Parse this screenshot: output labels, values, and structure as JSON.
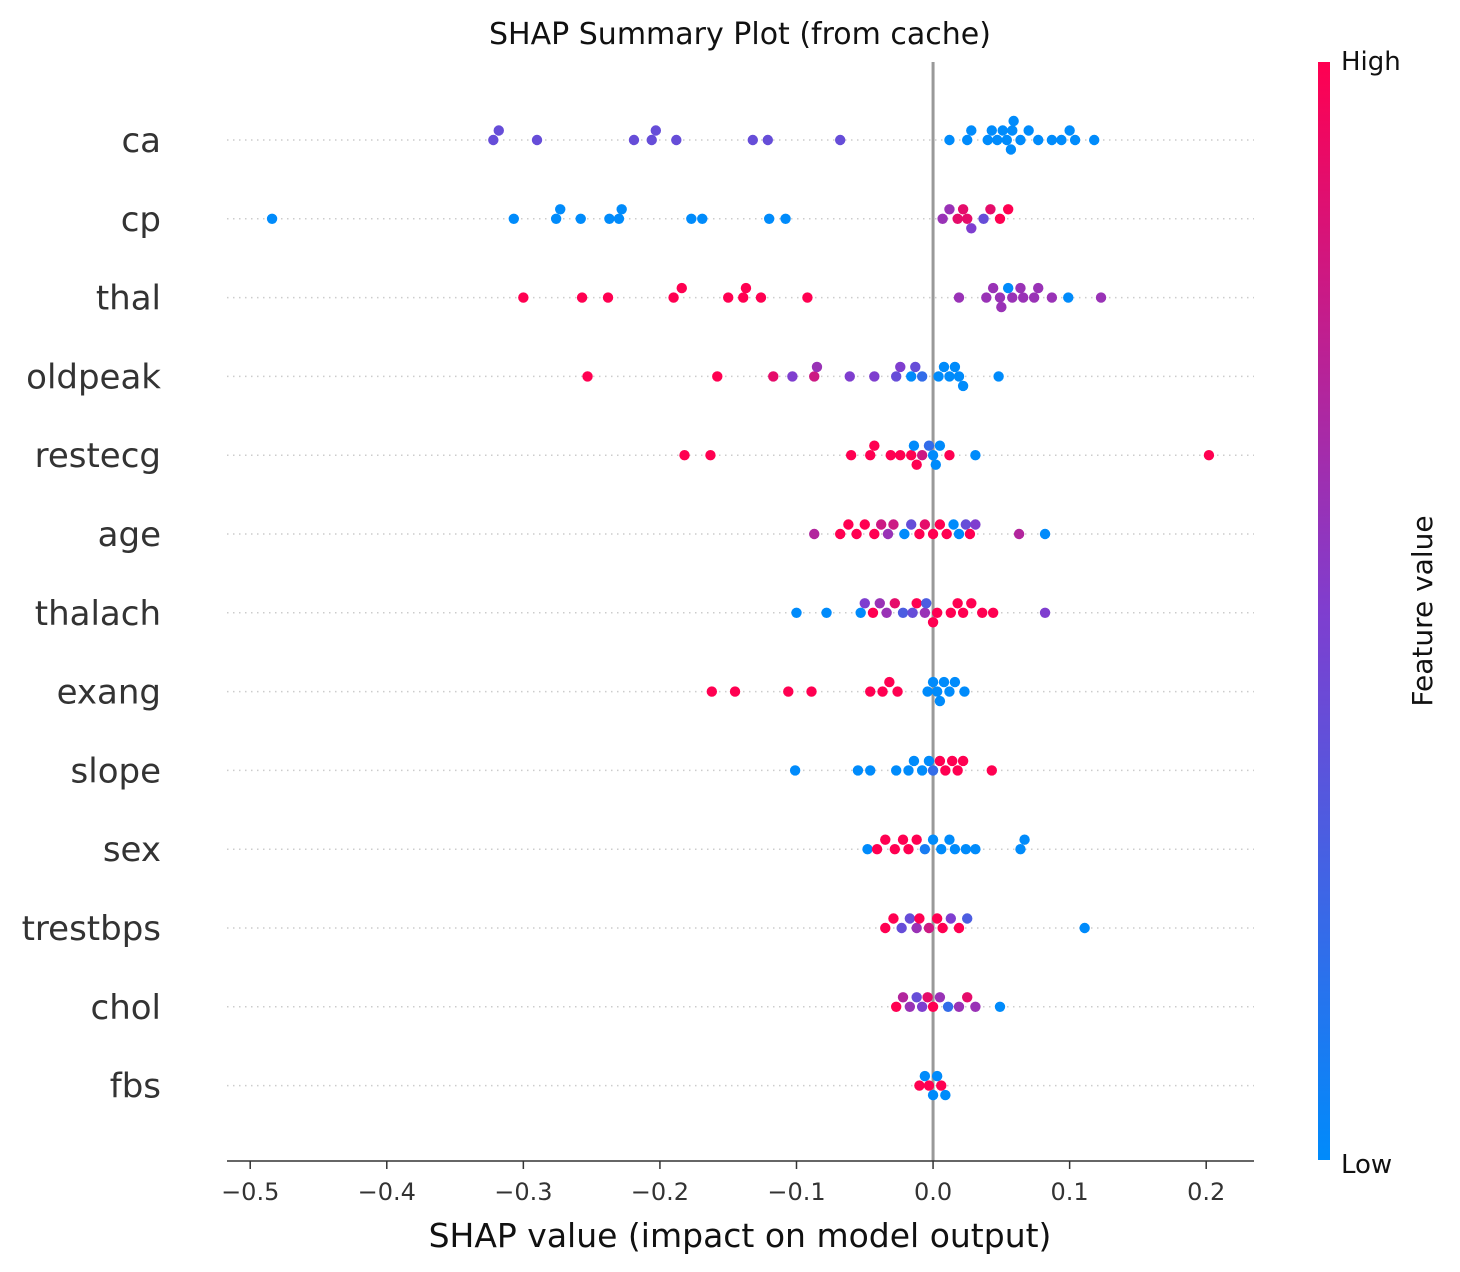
{
  "chart_data": {
    "type": "scatter",
    "title": "SHAP Summary Plot (from cache)",
    "xlabel": "SHAP value (impact on model output)",
    "xlim": [
      -0.517,
      0.235
    ],
    "xticks": [
      -0.5,
      -0.4,
      -0.3,
      -0.2,
      -0.1,
      0.0,
      0.1,
      0.2
    ],
    "xtick_labels": [
      "−0.5",
      "−0.4",
      "−0.3",
      "−0.2",
      "−0.1",
      "0.0",
      "0.1",
      "0.2"
    ],
    "features": [
      "ca",
      "cp",
      "thal",
      "oldpeak",
      "restecg",
      "age",
      "thalach",
      "exang",
      "slope",
      "sex",
      "trestbps",
      "chol",
      "fbs"
    ],
    "zero_line": true,
    "grid": false,
    "colorbar": {
      "label": "Feature value",
      "high_label": "High",
      "low_label": "Low",
      "high_color": "#ff0051",
      "mid_color": "#7f3ecf",
      "low_color": "#008bfb"
    },
    "series": [
      {
        "feature": "ca",
        "points": [
          [
            -0.322,
            0.4
          ],
          [
            -0.318,
            0.4
          ],
          [
            -0.29,
            0.4
          ],
          [
            -0.219,
            0.4
          ],
          [
            -0.206,
            0.4
          ],
          [
            -0.203,
            0.4
          ],
          [
            -0.188,
            0.4
          ],
          [
            -0.132,
            0.4
          ],
          [
            -0.121,
            0.4
          ],
          [
            -0.068,
            0.4
          ],
          [
            0.012,
            0.0
          ],
          [
            0.025,
            0.0
          ],
          [
            0.028,
            0.0
          ],
          [
            0.04,
            0.0
          ],
          [
            0.043,
            0.0
          ],
          [
            0.047,
            0.0
          ],
          [
            0.051,
            0.0
          ],
          [
            0.054,
            0.0
          ],
          [
            0.057,
            0.0
          ],
          [
            0.058,
            0.0
          ],
          [
            0.059,
            0.0
          ],
          [
            0.064,
            0.0
          ],
          [
            0.07,
            0.0
          ],
          [
            0.077,
            0.0
          ],
          [
            0.087,
            0.0
          ],
          [
            0.094,
            0.0
          ],
          [
            0.1,
            0.0
          ],
          [
            0.104,
            0.0
          ],
          [
            0.118,
            0.0
          ]
        ]
      },
      {
        "feature": "cp",
        "points": [
          [
            -0.484,
            0.0
          ],
          [
            -0.307,
            0.0
          ],
          [
            -0.276,
            0.0
          ],
          [
            -0.273,
            0.0
          ],
          [
            -0.258,
            0.0
          ],
          [
            -0.237,
            0.0
          ],
          [
            -0.23,
            0.0
          ],
          [
            -0.228,
            0.0
          ],
          [
            -0.177,
            0.0
          ],
          [
            -0.169,
            0.0
          ],
          [
            -0.12,
            0.0
          ],
          [
            -0.108,
            0.0
          ],
          [
            0.007,
            0.6
          ],
          [
            0.012,
            0.6
          ],
          [
            0.018,
            0.9
          ],
          [
            0.022,
            0.9
          ],
          [
            0.025,
            0.9
          ],
          [
            0.028,
            0.5
          ],
          [
            0.037,
            0.4
          ],
          [
            0.042,
            0.9
          ],
          [
            0.049,
            1.0
          ],
          [
            0.055,
            1.0
          ]
        ]
      },
      {
        "feature": "thal",
        "points": [
          [
            -0.3,
            1.0
          ],
          [
            -0.257,
            1.0
          ],
          [
            -0.238,
            1.0
          ],
          [
            -0.19,
            1.0
          ],
          [
            -0.184,
            1.0
          ],
          [
            -0.15,
            1.0
          ],
          [
            -0.139,
            1.0
          ],
          [
            -0.137,
            1.0
          ],
          [
            -0.126,
            1.0
          ],
          [
            -0.092,
            1.0
          ],
          [
            0.019,
            0.6
          ],
          [
            0.039,
            0.6
          ],
          [
            0.044,
            0.6
          ],
          [
            0.049,
            0.6
          ],
          [
            0.05,
            0.6
          ],
          [
            0.055,
            0.0
          ],
          [
            0.058,
            0.6
          ],
          [
            0.064,
            0.6
          ],
          [
            0.066,
            0.6
          ],
          [
            0.074,
            0.6
          ],
          [
            0.077,
            0.6
          ],
          [
            0.087,
            0.6
          ],
          [
            0.099,
            0.0
          ],
          [
            0.123,
            0.6
          ]
        ]
      },
      {
        "feature": "oldpeak",
        "points": [
          [
            -0.253,
            1.0
          ],
          [
            -0.158,
            1.0
          ],
          [
            -0.117,
            0.9
          ],
          [
            -0.103,
            0.5
          ],
          [
            -0.087,
            0.8
          ],
          [
            -0.085,
            0.6
          ],
          [
            -0.061,
            0.5
          ],
          [
            -0.043,
            0.5
          ],
          [
            -0.027,
            0.4
          ],
          [
            -0.024,
            0.5
          ],
          [
            -0.016,
            0.0
          ],
          [
            -0.013,
            0.4
          ],
          [
            -0.008,
            0.2
          ],
          [
            0.004,
            0.0
          ],
          [
            0.008,
            0.0
          ],
          [
            0.012,
            0.0
          ],
          [
            0.016,
            0.0
          ],
          [
            0.019,
            0.0
          ],
          [
            0.022,
            0.0
          ],
          [
            0.048,
            0.0
          ]
        ]
      },
      {
        "feature": "restecg",
        "points": [
          [
            -0.182,
            1.0
          ],
          [
            -0.163,
            1.0
          ],
          [
            -0.06,
            1.0
          ],
          [
            -0.046,
            1.0
          ],
          [
            -0.043,
            1.0
          ],
          [
            -0.031,
            1.0
          ],
          [
            -0.024,
            1.0
          ],
          [
            -0.016,
            1.0
          ],
          [
            -0.014,
            0.0
          ],
          [
            -0.012,
            1.0
          ],
          [
            -0.008,
            0.8
          ],
          [
            -0.003,
            0.2
          ],
          [
            0.0,
            0.0
          ],
          [
            0.002,
            0.0
          ],
          [
            0.005,
            0.0
          ],
          [
            0.012,
            1.0
          ],
          [
            0.031,
            0.0
          ],
          [
            0.202,
            1.0
          ]
        ]
      },
      {
        "feature": "age",
        "points": [
          [
            -0.087,
            0.7
          ],
          [
            -0.068,
            1.0
          ],
          [
            -0.062,
            1.0
          ],
          [
            -0.056,
            1.0
          ],
          [
            -0.05,
            1.0
          ],
          [
            -0.043,
            1.0
          ],
          [
            -0.038,
            0.8
          ],
          [
            -0.033,
            0.6
          ],
          [
            -0.029,
            0.8
          ],
          [
            -0.021,
            0.0
          ],
          [
            -0.016,
            0.4
          ],
          [
            -0.01,
            1.0
          ],
          [
            -0.006,
            0.9
          ],
          [
            0.0,
            1.0
          ],
          [
            0.005,
            1.0
          ],
          [
            0.01,
            1.0
          ],
          [
            0.015,
            0.0
          ],
          [
            0.019,
            0.0
          ],
          [
            0.024,
            0.4
          ],
          [
            0.027,
            1.0
          ],
          [
            0.031,
            0.5
          ],
          [
            0.063,
            0.7
          ],
          [
            0.082,
            0.0
          ]
        ]
      },
      {
        "feature": "thalach",
        "points": [
          [
            -0.1,
            0.0
          ],
          [
            -0.078,
            0.0
          ],
          [
            -0.053,
            0.0
          ],
          [
            -0.05,
            0.5
          ],
          [
            -0.044,
            1.0
          ],
          [
            -0.039,
            0.6
          ],
          [
            -0.034,
            0.6
          ],
          [
            -0.028,
            0.9
          ],
          [
            -0.022,
            0.3
          ],
          [
            -0.015,
            0.4
          ],
          [
            -0.012,
            1.0
          ],
          [
            -0.006,
            0.6
          ],
          [
            -0.005,
            0.3
          ],
          [
            0.0,
            1.0
          ],
          [
            0.003,
            1.0
          ],
          [
            0.013,
            1.0
          ],
          [
            0.018,
            1.0
          ],
          [
            0.022,
            1.0
          ],
          [
            0.028,
            1.0
          ],
          [
            0.036,
            1.0
          ],
          [
            0.044,
            1.0
          ],
          [
            0.082,
            0.5
          ]
        ]
      },
      {
        "feature": "exang",
        "points": [
          [
            -0.162,
            1.0
          ],
          [
            -0.145,
            1.0
          ],
          [
            -0.106,
            1.0
          ],
          [
            -0.089,
            1.0
          ],
          [
            -0.046,
            1.0
          ],
          [
            -0.037,
            1.0
          ],
          [
            -0.032,
            1.0
          ],
          [
            -0.026,
            1.0
          ],
          [
            -0.004,
            0.0
          ],
          [
            0.0,
            0.0
          ],
          [
            0.003,
            0.0
          ],
          [
            0.005,
            0.0
          ],
          [
            0.008,
            0.0
          ],
          [
            0.012,
            0.0
          ],
          [
            0.016,
            0.0
          ],
          [
            0.023,
            0.0
          ]
        ]
      },
      {
        "feature": "slope",
        "points": [
          [
            -0.101,
            0.0
          ],
          [
            -0.055,
            0.0
          ],
          [
            -0.046,
            0.0
          ],
          [
            -0.027,
            0.0
          ],
          [
            -0.018,
            0.0
          ],
          [
            -0.014,
            0.0
          ],
          [
            -0.008,
            0.0
          ],
          [
            -0.003,
            0.0
          ],
          [
            0.0,
            0.2
          ],
          [
            0.005,
            1.0
          ],
          [
            0.009,
            1.0
          ],
          [
            0.014,
            1.0
          ],
          [
            0.018,
            1.0
          ],
          [
            0.022,
            1.0
          ],
          [
            0.043,
            1.0
          ]
        ]
      },
      {
        "feature": "sex",
        "points": [
          [
            -0.048,
            0.0
          ],
          [
            -0.041,
            1.0
          ],
          [
            -0.035,
            1.0
          ],
          [
            -0.028,
            1.0
          ],
          [
            -0.022,
            1.0
          ],
          [
            -0.018,
            1.0
          ],
          [
            -0.012,
            1.0
          ],
          [
            -0.006,
            0.1
          ],
          [
            0.0,
            0.0
          ],
          [
            0.006,
            0.0
          ],
          [
            0.012,
            0.0
          ],
          [
            0.016,
            0.0
          ],
          [
            0.024,
            0.0
          ],
          [
            0.031,
            0.0
          ],
          [
            0.064,
            0.0
          ],
          [
            0.067,
            0.0
          ]
        ]
      },
      {
        "feature": "trestbps",
        "points": [
          [
            -0.035,
            1.0
          ],
          [
            -0.029,
            1.0
          ],
          [
            -0.023,
            0.4
          ],
          [
            -0.017,
            0.4
          ],
          [
            -0.012,
            0.6
          ],
          [
            -0.01,
            1.0
          ],
          [
            -0.003,
            0.8
          ],
          [
            0.003,
            1.0
          ],
          [
            0.007,
            1.0
          ],
          [
            0.013,
            0.5
          ],
          [
            0.019,
            1.0
          ],
          [
            0.025,
            0.3
          ],
          [
            0.111,
            0.0
          ]
        ]
      },
      {
        "feature": "chol",
        "points": [
          [
            -0.027,
            1.0
          ],
          [
            -0.022,
            0.7
          ],
          [
            -0.017,
            0.6
          ],
          [
            -0.012,
            0.4
          ],
          [
            -0.008,
            0.5
          ],
          [
            -0.004,
            0.9
          ],
          [
            0.0,
            1.0
          ],
          [
            0.005,
            0.6
          ],
          [
            0.011,
            0.2
          ],
          [
            0.019,
            0.6
          ],
          [
            0.025,
            0.9
          ],
          [
            0.031,
            0.6
          ],
          [
            0.049,
            0.0
          ]
        ]
      },
      {
        "feature": "fbs",
        "points": [
          [
            -0.01,
            1.0
          ],
          [
            -0.006,
            0.0
          ],
          [
            -0.003,
            1.0
          ],
          [
            0.0,
            0.0
          ],
          [
            0.003,
            0.0
          ],
          [
            0.006,
            1.0
          ],
          [
            0.009,
            0.0
          ]
        ]
      }
    ]
  }
}
